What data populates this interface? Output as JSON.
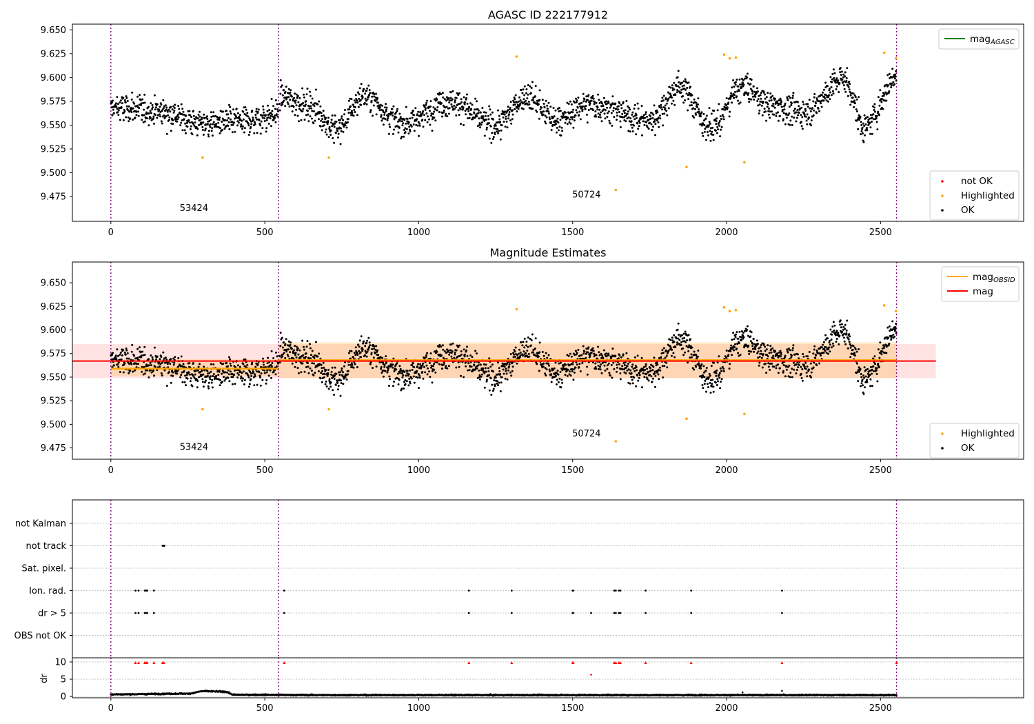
{
  "chart_data": [
    {
      "type": "scatter",
      "title": "AGASC ID 222177912",
      "xlim": [
        -125,
        2965
      ],
      "ylim": [
        9.449,
        9.656
      ],
      "xticks": [
        0,
        500,
        1000,
        1500,
        2000,
        2500
      ],
      "yticks": [
        9.475,
        9.5,
        9.525,
        9.55,
        9.575,
        9.6,
        9.625,
        9.65
      ],
      "ytick_labels": [
        "9.475",
        "9.500",
        "9.525",
        "9.550",
        "9.575",
        "9.600",
        "9.625",
        "9.650"
      ],
      "obs_boundaries": [
        0,
        544,
        2552
      ],
      "obs_annotations": [
        {
          "text": "53424",
          "x": 270,
          "y": 9.46
        },
        {
          "text": "50724",
          "x": 1545,
          "y": 9.474
        }
      ],
      "legend_top": [
        {
          "label": "mag",
          "sub": "AGASC",
          "color": "#008000",
          "kind": "line"
        }
      ],
      "legend_bottom": [
        {
          "label": "not OK",
          "color": "#ff0000",
          "kind": "dot"
        },
        {
          "label": "Highlighted",
          "color": "#ffa500",
          "kind": "dot"
        },
        {
          "label": "OK",
          "color": "#000000",
          "kind": "dot"
        }
      ],
      "series": [
        {
          "name": "OK",
          "color": "#000000",
          "base_segments": [
            {
              "x0": 0,
              "x1": 544,
              "centers": [
                [
                  0,
                  9.568
                ],
                [
                  150,
                  9.565
                ],
                [
                  300,
                  9.552
                ],
                [
                  450,
                  9.555
                ],
                [
                  544,
                  9.562
                ]
              ]
            },
            {
              "x0": 548,
              "x1": 2552,
              "centers": [
                [
                  548,
                  9.58
                ],
                [
                  650,
                  9.57
                ],
                [
                  730,
                  9.545
                ],
                [
                  820,
                  9.58
                ],
                [
                  950,
                  9.552
                ],
                [
                  1100,
                  9.575
                ],
                [
                  1250,
                  9.55
                ],
                [
                  1350,
                  9.58
                ],
                [
                  1450,
                  9.555
                ],
                [
                  1550,
                  9.572
                ],
                [
                  1750,
                  9.555
                ],
                [
                  1850,
                  9.59
                ],
                [
                  1950,
                  9.548
                ],
                [
                  2050,
                  9.59
                ],
                [
                  2150,
                  9.57
                ],
                [
                  2250,
                  9.563
                ],
                [
                  2380,
                  9.598
                ],
                [
                  2450,
                  9.548
                ],
                [
                  2552,
                  9.6
                ]
              ]
            }
          ]
        },
        {
          "name": "Highlighted",
          "color": "#ffa500",
          "points": [
            [
              298,
              9.516
            ],
            [
              708,
              9.516
            ],
            [
              1318,
              9.622
            ],
            [
              1640,
              9.482
            ],
            [
              1870,
              9.506
            ],
            [
              1992,
              9.624
            ],
            [
              2010,
              9.62
            ],
            [
              2030,
              9.621
            ],
            [
              2058,
              9.511
            ],
            [
              2512,
              9.626
            ],
            [
              2550,
              9.62
            ]
          ]
        }
      ]
    },
    {
      "type": "scatter",
      "title": "Magnitude Estimates",
      "xlim": [
        -125,
        2965
      ],
      "ylim": [
        9.463,
        9.672
      ],
      "xticks": [
        0,
        500,
        1000,
        1500,
        2000,
        2500
      ],
      "yticks": [
        9.475,
        9.5,
        9.525,
        9.55,
        9.575,
        9.6,
        9.625,
        9.65
      ],
      "ytick_labels": [
        "9.475",
        "9.500",
        "9.525",
        "9.550",
        "9.575",
        "9.600",
        "9.625",
        "9.650"
      ],
      "obs_boundaries": [
        0,
        544,
        2552
      ],
      "obs_annotations": [
        {
          "text": "53424",
          "x": 270,
          "y": 9.473
        },
        {
          "text": "50724",
          "x": 1545,
          "y": 9.487
        }
      ],
      "mag_line": {
        "value": 9.567,
        "x0": -125,
        "x1": 2680,
        "band": [
          9.549,
          9.585
        ],
        "color": "#ff0000"
      },
      "mag_obsid": [
        {
          "x0": 0,
          "x1": 544,
          "value": 9.559,
          "band": [
            9.551,
            9.569
          ]
        },
        {
          "x0": 544,
          "x1": 2552,
          "value": 9.568,
          "band": [
            9.549,
            9.587
          ]
        }
      ],
      "legend_top": [
        {
          "label": "mag",
          "sub": "OBSID",
          "color": "#ffa500",
          "kind": "line"
        },
        {
          "label": "mag",
          "sub": "",
          "color": "#ff0000",
          "kind": "line"
        }
      ],
      "legend_bottom": [
        {
          "label": "Highlighted",
          "color": "#ffa500",
          "kind": "dot"
        },
        {
          "label": "OK",
          "color": "#000000",
          "kind": "dot"
        }
      ],
      "series": [
        {
          "name": "Highlighted",
          "color": "#ffa500",
          "points": [
            [
              298,
              9.516
            ],
            [
              708,
              9.516
            ],
            [
              1318,
              9.622
            ],
            [
              1640,
              9.482
            ],
            [
              1870,
              9.506
            ],
            [
              1992,
              9.624
            ],
            [
              2010,
              9.62
            ],
            [
              2030,
              9.621
            ],
            [
              2058,
              9.511
            ],
            [
              2512,
              9.626
            ],
            [
              2550,
              9.62
            ]
          ]
        }
      ]
    },
    {
      "type": "scatter",
      "title": "",
      "xlim": [
        -125,
        2965
      ],
      "flags": [
        "not Kalman",
        "not track",
        "Sat. pixel.",
        "Ion. rad.",
        "dr > 5",
        "OBS not OK"
      ],
      "flag_points": {
        "not track": [
          168,
          170,
          172,
          174
        ],
        "Ion. rad.": [
          80,
          90,
          110,
          115,
          118,
          140,
          563,
          1163,
          1302,
          1500,
          1502,
          1635,
          1640,
          1650,
          1655,
          1737,
          1885,
          2180
        ],
        "dr > 5": [
          80,
          90,
          110,
          115,
          118,
          140,
          563,
          1163,
          1302,
          1500,
          1502,
          1560,
          1635,
          1640,
          1650,
          1655,
          1737,
          1885,
          2180
        ]
      },
      "obs_boundaries": [
        0,
        544,
        2552
      ]
    },
    {
      "type": "scatter",
      "ylabel": "dr",
      "xlim": [
        -125,
        2965
      ],
      "ylim": [
        -0.4,
        11.2
      ],
      "yticks": [
        0,
        5,
        10
      ],
      "xticks": [
        0,
        500,
        1000,
        1500,
        2000,
        2500
      ],
      "obs_boundaries": [
        0,
        544,
        2552
      ],
      "capped_points": [
        80,
        90,
        110,
        115,
        118,
        140,
        168,
        172,
        563,
        1163,
        1302,
        1500,
        1502,
        1635,
        1640,
        1650,
        1655,
        1737,
        1885,
        2180,
        2552
      ],
      "outliers": [
        [
          1560,
          6.3
        ],
        [
          2180,
          1.6
        ],
        [
          2052,
          1.2
        ]
      ],
      "dr_levels": [
        [
          0,
          0.6
        ],
        [
          250,
          0.8
        ],
        [
          300,
          1.5
        ],
        [
          370,
          1.4
        ],
        [
          400,
          0.5
        ],
        [
          700,
          0.4
        ],
        [
          2552,
          0.4
        ]
      ]
    }
  ]
}
